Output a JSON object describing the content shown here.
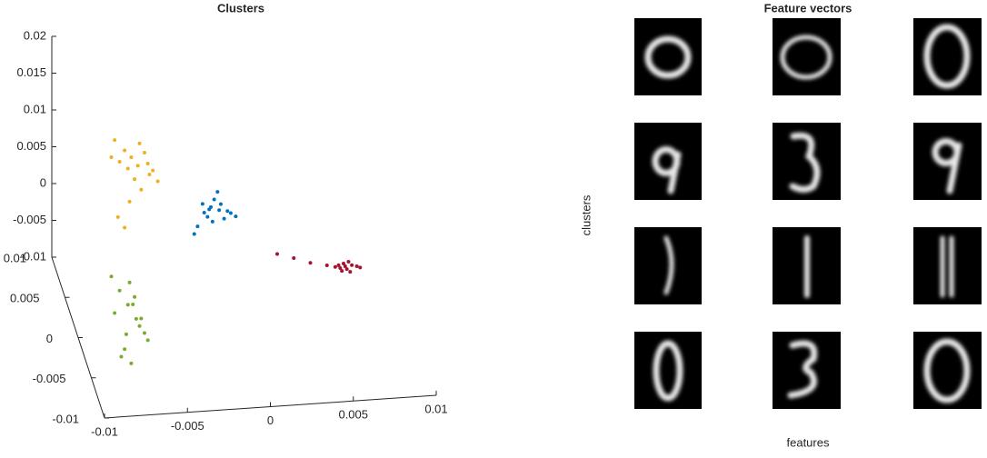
{
  "chart_data": [
    {
      "type": "scatter3d",
      "title": "Clusters",
      "xlim": [
        -0.01,
        0.01
      ],
      "xticks": [
        -0.01,
        -0.005,
        0,
        0.005,
        0.01
      ],
      "ylim": [
        -0.01,
        0.01
      ],
      "yticks": [
        -0.01,
        -0.005,
        0,
        0.005,
        0.01
      ],
      "zlim": [
        -0.01,
        0.02
      ],
      "zticks": [
        -0.01,
        -0.005,
        0,
        0.005,
        0.01,
        0.015,
        0.02
      ],
      "series": [
        {
          "color": "#edb120",
          "x": [
            -0.0078,
            -0.0072,
            -0.0068,
            -0.0063,
            -0.0058,
            -0.0055,
            -0.007,
            -0.006,
            -0.0066,
            -0.0075,
            -0.0052,
            -0.0062,
            -0.0069,
            -0.0057,
            -0.008,
            -0.0064,
            -0.0076,
            -0.0072
          ],
          "y": [
            0,
            0,
            0,
            0,
            0,
            0,
            0,
            0,
            0,
            0,
            0,
            0,
            0,
            0,
            0,
            0,
            0,
            0
          ],
          "z": [
            0.0165,
            0.015,
            0.014,
            0.0158,
            0.013,
            0.012,
            0.0125,
            0.0145,
            0.011,
            0.0135,
            0.0105,
            0.0095,
            0.008,
            0.0115,
            0.0142,
            0.0128,
            0.006,
            0.0045
          ]
        },
        {
          "color": "#0072bd",
          "x": [
            -0.0025,
            -0.002,
            -0.0015,
            -0.001,
            -0.0022,
            -0.0018,
            -0.0012,
            -0.0028,
            -0.0016,
            -0.0021,
            -0.0008,
            -0.003,
            -0.0014,
            -0.0019,
            -0.0024,
            -0.0005
          ],
          "y": [
            0,
            0,
            0,
            0,
            0,
            0,
            0,
            0,
            0,
            0,
            0,
            0,
            0,
            0,
            0,
            0
          ],
          "z": [
            0.007,
            0.0065,
            0.006,
            0.0058,
            0.0052,
            0.0075,
            0.0048,
            0.004,
            0.0085,
            0.0062,
            0.0055,
            0.003,
            0.0068,
            0.0045,
            0.0058,
            0.005
          ]
        },
        {
          "color": "#a2142f",
          "x": [
            0.005,
            0.0055,
            0.0058,
            0.006,
            0.0062,
            0.0065,
            0.0068,
            0.0059,
            0.0063,
            0.0057,
            0.007,
            0.004,
            0.003,
            0.002,
            0.0064,
            0.0061
          ],
          "y": [
            0,
            0,
            0,
            0,
            0,
            0,
            0,
            0,
            0,
            0,
            0,
            0,
            0,
            0,
            0,
            0
          ],
          "z": [
            -0.0025,
            -0.0028,
            -0.003,
            -0.0024,
            -0.0032,
            -0.0027,
            -0.0029,
            -0.0034,
            -0.0022,
            -0.0026,
            -0.0031,
            -0.002,
            -0.0012,
            -0.0005,
            -0.0036,
            -0.0028
          ]
        },
        {
          "color": "#77ac30",
          "x": [
            -0.008,
            -0.0075,
            -0.007,
            -0.0065,
            -0.006,
            -0.0072,
            -0.0068,
            -0.0063,
            -0.0078,
            -0.0058,
            -0.0066,
            -0.0074,
            -0.0069,
            -0.0062,
            -0.0071,
            -0.0067
          ],
          "y": [
            0,
            0,
            0,
            0,
            0,
            0,
            0,
            0,
            0,
            0,
            0,
            0,
            0,
            0,
            0,
            0
          ],
          "z": [
            -0.002,
            -0.004,
            -0.006,
            -0.008,
            -0.01,
            -0.012,
            -0.014,
            -0.009,
            -0.007,
            -0.011,
            -0.005,
            -0.013,
            -0.003,
            -0.008,
            -0.01,
            -0.006
          ]
        }
      ]
    },
    {
      "type": "image-grid",
      "title": "Feature vectors",
      "xlabel": "features",
      "ylabel": "clusters"
    }
  ]
}
